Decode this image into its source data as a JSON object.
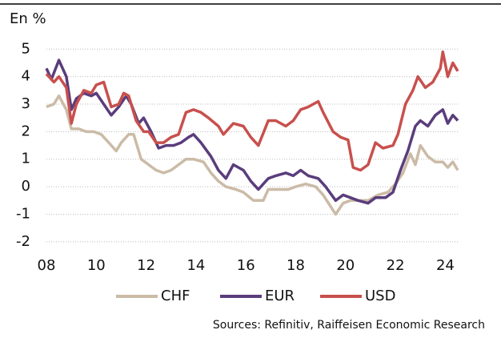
{
  "chart_data": {
    "type": "line",
    "title": "En %",
    "source": "Sources: Refinitiv, Raiffeisen Economic Research",
    "xlim": [
      2008,
      2024.5
    ],
    "xticks": [
      {
        "value": 2008,
        "label": "08"
      },
      {
        "value": 2010,
        "label": "10"
      },
      {
        "value": 2012,
        "label": "12"
      },
      {
        "value": 2014,
        "label": "14"
      },
      {
        "value": 2016,
        "label": "16"
      },
      {
        "value": 2018,
        "label": "18"
      },
      {
        "value": 2020,
        "label": "20"
      },
      {
        "value": 2022,
        "label": "22"
      },
      {
        "value": 2024,
        "label": "24"
      }
    ],
    "ylim": [
      -2.5,
      5.3
    ],
    "yticks": [
      -2,
      -1,
      0,
      1,
      2,
      3,
      4,
      5
    ],
    "grid": true,
    "series": [
      {
        "name": "CHF",
        "color": "#cbbba6",
        "x": [
          2008.0,
          2008.3,
          2008.5,
          2008.8,
          2009.0,
          2009.3,
          2009.6,
          2009.9,
          2010.2,
          2010.5,
          2010.8,
          2011.0,
          2011.3,
          2011.5,
          2011.8,
          2012.1,
          2012.4,
          2012.7,
          2013.0,
          2013.3,
          2013.6,
          2013.9,
          2014.3,
          2014.6,
          2014.9,
          2015.2,
          2015.6,
          2015.9,
          2016.3,
          2016.7,
          2016.9,
          2017.3,
          2017.7,
          2018.0,
          2018.4,
          2018.8,
          2019.1,
          2019.6,
          2019.9,
          2020.2,
          2020.5,
          2020.9,
          2021.3,
          2021.7,
          2022.0,
          2022.3,
          2022.6,
          2022.8,
          2023.0,
          2023.3,
          2023.6,
          2023.9,
          2024.1,
          2024.3,
          2024.5
        ],
        "values": [
          2.9,
          3.0,
          3.3,
          2.8,
          2.1,
          2.1,
          2.0,
          2.0,
          1.9,
          1.6,
          1.3,
          1.6,
          1.9,
          1.9,
          1.0,
          0.8,
          0.6,
          0.5,
          0.6,
          0.8,
          1.0,
          1.0,
          0.9,
          0.5,
          0.2,
          0.0,
          -0.1,
          -0.2,
          -0.5,
          -0.5,
          -0.1,
          -0.1,
          -0.1,
          0.0,
          0.1,
          0.0,
          -0.3,
          -1.0,
          -0.6,
          -0.5,
          -0.5,
          -0.5,
          -0.3,
          -0.2,
          0.1,
          0.5,
          1.2,
          0.8,
          1.5,
          1.1,
          0.9,
          0.9,
          0.7,
          0.9,
          0.6
        ]
      },
      {
        "name": "EUR",
        "color": "#5a3d7c",
        "x": [
          2008.0,
          2008.2,
          2008.5,
          2008.8,
          2009.0,
          2009.2,
          2009.5,
          2009.8,
          2010.0,
          2010.3,
          2010.6,
          2010.9,
          2011.2,
          2011.4,
          2011.7,
          2011.9,
          2012.2,
          2012.5,
          2012.8,
          2013.1,
          2013.4,
          2013.7,
          2013.9,
          2014.2,
          2014.6,
          2014.9,
          2015.2,
          2015.5,
          2015.9,
          2016.2,
          2016.5,
          2016.9,
          2017.2,
          2017.6,
          2017.9,
          2018.2,
          2018.5,
          2018.9,
          2019.2,
          2019.6,
          2019.9,
          2020.2,
          2020.5,
          2020.9,
          2021.2,
          2021.6,
          2021.9,
          2022.2,
          2022.5,
          2022.8,
          2023.0,
          2023.3,
          2023.6,
          2023.9,
          2024.1,
          2024.3,
          2024.5
        ],
        "values": [
          4.3,
          3.9,
          4.6,
          4.0,
          2.8,
          3.2,
          3.4,
          3.3,
          3.4,
          3.0,
          2.6,
          2.9,
          3.3,
          3.0,
          2.3,
          2.5,
          2.0,
          1.4,
          1.5,
          1.5,
          1.6,
          1.8,
          1.9,
          1.6,
          1.1,
          0.6,
          0.3,
          0.8,
          0.6,
          0.2,
          -0.1,
          0.3,
          0.4,
          0.5,
          0.4,
          0.6,
          0.4,
          0.3,
          0.0,
          -0.5,
          -0.3,
          -0.4,
          -0.5,
          -0.6,
          -0.4,
          -0.4,
          -0.2,
          0.6,
          1.3,
          2.2,
          2.4,
          2.2,
          2.6,
          2.8,
          2.3,
          2.6,
          2.4
        ]
      },
      {
        "name": "USD",
        "color": "#c8504d",
        "x": [
          2008.0,
          2008.3,
          2008.5,
          2008.8,
          2009.0,
          2009.2,
          2009.5,
          2009.8,
          2010.0,
          2010.3,
          2010.6,
          2010.9,
          2011.1,
          2011.3,
          2011.6,
          2011.9,
          2012.1,
          2012.4,
          2012.7,
          2013.0,
          2013.3,
          2013.6,
          2013.9,
          2014.2,
          2014.5,
          2014.9,
          2015.1,
          2015.5,
          2015.9,
          2016.2,
          2016.5,
          2016.9,
          2017.2,
          2017.6,
          2017.9,
          2018.2,
          2018.5,
          2018.9,
          2019.1,
          2019.5,
          2019.8,
          2020.1,
          2020.3,
          2020.6,
          2020.9,
          2021.2,
          2021.5,
          2021.9,
          2022.1,
          2022.4,
          2022.7,
          2022.9,
          2023.2,
          2023.5,
          2023.8,
          2023.9,
          2024.1,
          2024.3,
          2024.5
        ],
        "values": [
          4.1,
          3.8,
          4.0,
          3.6,
          2.3,
          3.0,
          3.5,
          3.4,
          3.7,
          3.8,
          2.9,
          3.0,
          3.4,
          3.3,
          2.4,
          2.0,
          2.0,
          1.6,
          1.6,
          1.8,
          1.9,
          2.7,
          2.8,
          2.7,
          2.5,
          2.2,
          1.9,
          2.3,
          2.2,
          1.8,
          1.5,
          2.4,
          2.4,
          2.2,
          2.4,
          2.8,
          2.9,
          3.1,
          2.7,
          2.0,
          1.8,
          1.7,
          0.7,
          0.6,
          0.8,
          1.6,
          1.4,
          1.5,
          1.9,
          3.0,
          3.5,
          4.0,
          3.6,
          3.8,
          4.3,
          4.9,
          4.0,
          4.5,
          4.2
        ]
      }
    ]
  }
}
